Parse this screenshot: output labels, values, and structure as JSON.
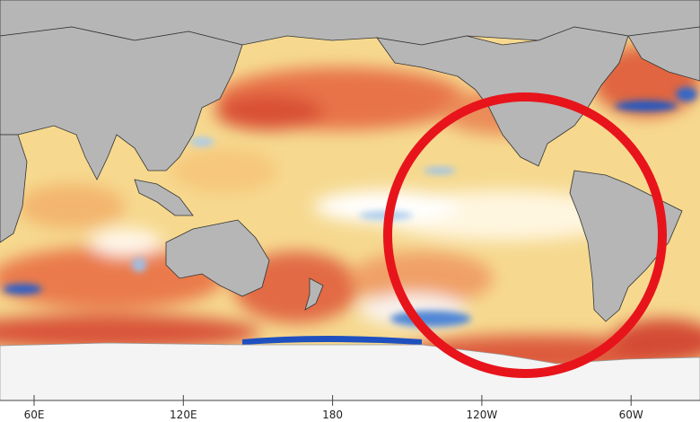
{
  "map": {
    "longitude_labels": [
      "60E",
      "120E",
      "180",
      "120W",
      "60W"
    ]
  }
}
